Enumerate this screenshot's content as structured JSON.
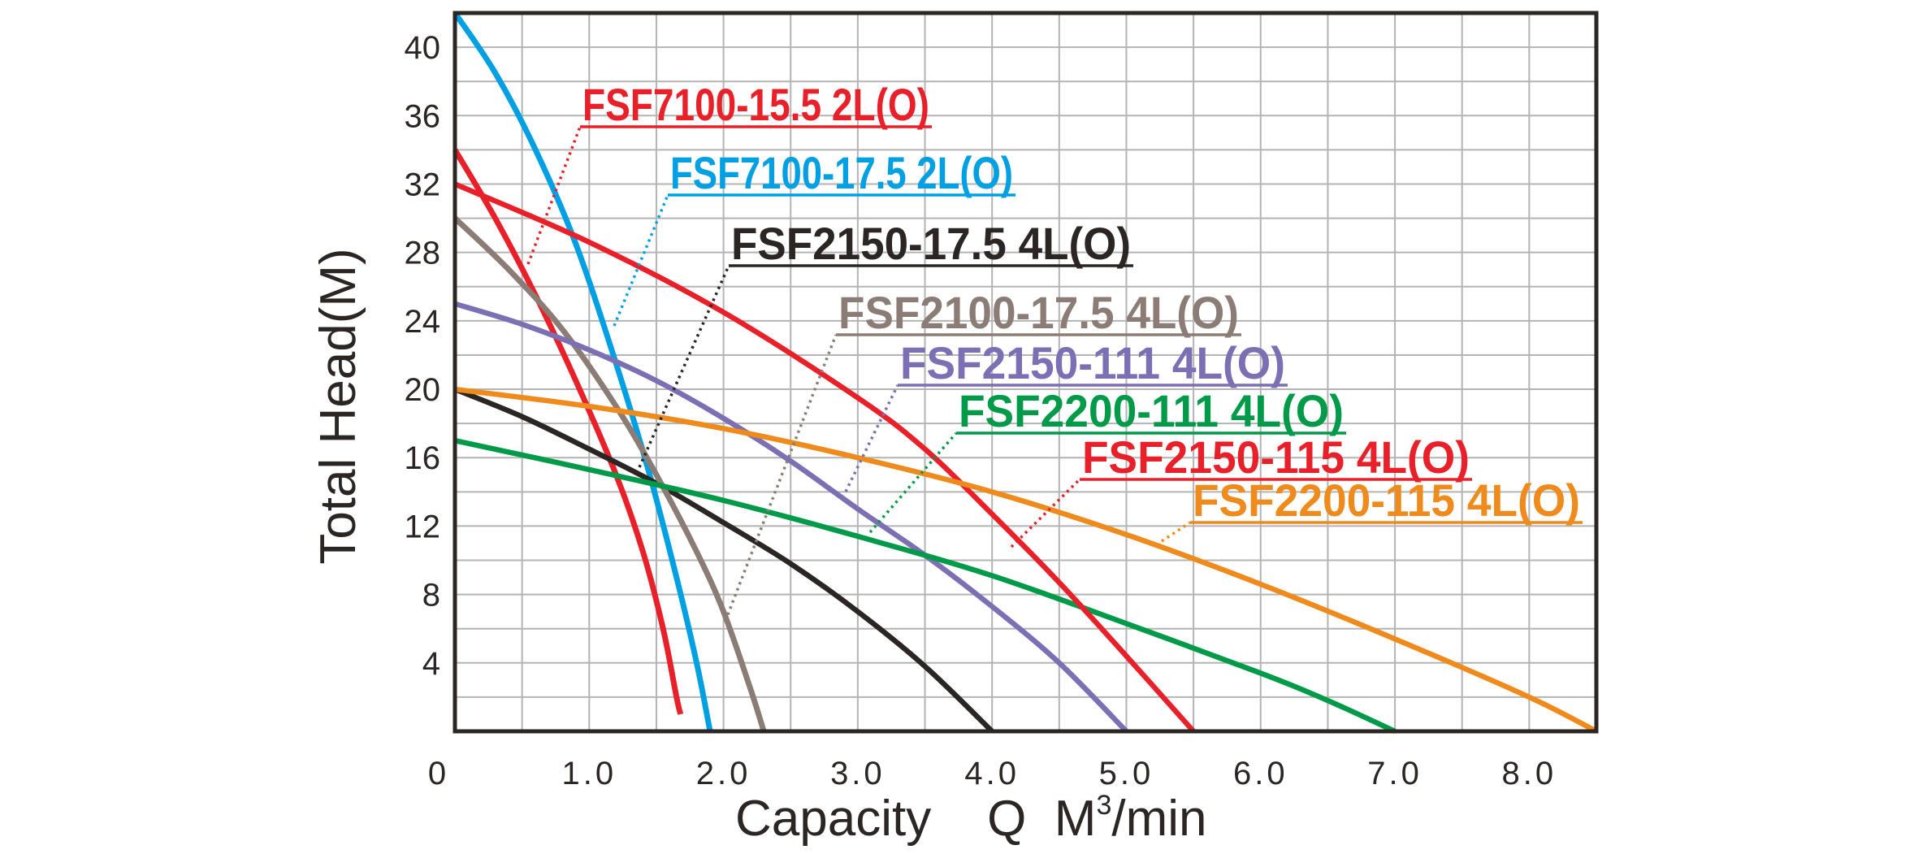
{
  "chart_data": {
    "type": "line",
    "title": "",
    "xlabel": "Capacity    Q  M³/min",
    "xlabel_parts": {
      "main": "Capacity    Q  M",
      "sup": "3",
      "tail": "/min"
    },
    "ylabel": "Total  Head(M)",
    "xlim": [
      0,
      8.5
    ],
    "ylim": [
      0,
      42
    ],
    "grid": true,
    "x_grid_step": 0.5,
    "y_grid_step": 2,
    "x_ticks": [
      {
        "v": 0,
        "label": "0"
      },
      {
        "v": 1,
        "label": "1.0"
      },
      {
        "v": 2,
        "label": "2.0"
      },
      {
        "v": 3,
        "label": "3.0"
      },
      {
        "v": 4,
        "label": "4.0"
      },
      {
        "v": 5,
        "label": "5.0"
      },
      {
        "v": 6,
        "label": "6.0"
      },
      {
        "v": 7,
        "label": "7.0"
      },
      {
        "v": 8,
        "label": "8.0"
      }
    ],
    "y_ticks": [
      {
        "v": 4,
        "label": "4"
      },
      {
        "v": 8,
        "label": "8"
      },
      {
        "v": 12,
        "label": "12"
      },
      {
        "v": 16,
        "label": "16"
      },
      {
        "v": 20,
        "label": "20"
      },
      {
        "v": 24,
        "label": "24"
      },
      {
        "v": 28,
        "label": "28"
      },
      {
        "v": 32,
        "label": "32"
      },
      {
        "v": 36,
        "label": "36"
      },
      {
        "v": 40,
        "label": "40"
      }
    ],
    "series": [
      {
        "name": "FSF7100-15.5 2L(O)",
        "color": "#e8202a",
        "x": [
          0,
          0.3,
          0.6,
          0.9,
          1.2,
          1.4,
          1.55,
          1.65,
          1.68
        ],
        "y": [
          34,
          30,
          25.5,
          20.5,
          15,
          10.5,
          6,
          2,
          1
        ]
      },
      {
        "name": "FSF7100-17.5 2L(O)",
        "color": "#00a0e3",
        "x": [
          0,
          0.3,
          0.6,
          0.9,
          1.2,
          1.45,
          1.65,
          1.8,
          1.9
        ],
        "y": [
          42,
          38.5,
          34,
          28.5,
          21.5,
          15,
          9,
          4,
          0
        ]
      },
      {
        "name": "FSF2150-17.5 4L(O)",
        "color": "#2b2523",
        "x": [
          0,
          0.5,
          1,
          1.5,
          2,
          2.5,
          3,
          3.5,
          4
        ],
        "y": [
          20,
          18.4,
          16.5,
          14.5,
          12.2,
          9.8,
          7,
          3.8,
          0
        ]
      },
      {
        "name": "FSF2100-17.5 4L(O)",
        "color": "#8b7d75",
        "x": [
          0,
          0.4,
          0.8,
          1.2,
          1.5,
          1.8,
          2.0,
          2.2,
          2.3
        ],
        "y": [
          30,
          27,
          23.5,
          19,
          15,
          10.5,
          7,
          2.5,
          0
        ]
      },
      {
        "name": "FSF2150-111 4L(O)",
        "color": "#7c6fb3",
        "x": [
          0,
          0.5,
          1,
          1.5,
          2,
          2.5,
          3,
          3.5,
          4,
          4.5,
          5
        ],
        "y": [
          25,
          23.8,
          22.3,
          20.5,
          18.3,
          15.8,
          13,
          10.3,
          7.3,
          4,
          0
        ]
      },
      {
        "name": "FSF2200-111 4L(O)",
        "color": "#009a48",
        "x": [
          0,
          1,
          2,
          3,
          4,
          5,
          6,
          6.5,
          7
        ],
        "y": [
          17,
          15.3,
          13.5,
          11.4,
          9.1,
          6.3,
          3.4,
          1.8,
          0
        ]
      },
      {
        "name": "FSF2150-115 4L(O)",
        "color": "#e8202a",
        "x": [
          0,
          1,
          2,
          3,
          3.5,
          4,
          4.5,
          5,
          5.5
        ],
        "y": [
          32,
          28.6,
          24.5,
          19.5,
          16.5,
          12.7,
          8.7,
          4.4,
          0
        ]
      },
      {
        "name": "FSF2200-115 4L(O)",
        "color": "#ef8a1c",
        "x": [
          0,
          1,
          2,
          3,
          4,
          5,
          6,
          7,
          8,
          8.5
        ],
        "y": [
          20,
          19,
          17.7,
          16,
          14,
          11.5,
          8.6,
          5.4,
          2,
          0
        ]
      }
    ],
    "legend_placement": "inline-callouts"
  }
}
